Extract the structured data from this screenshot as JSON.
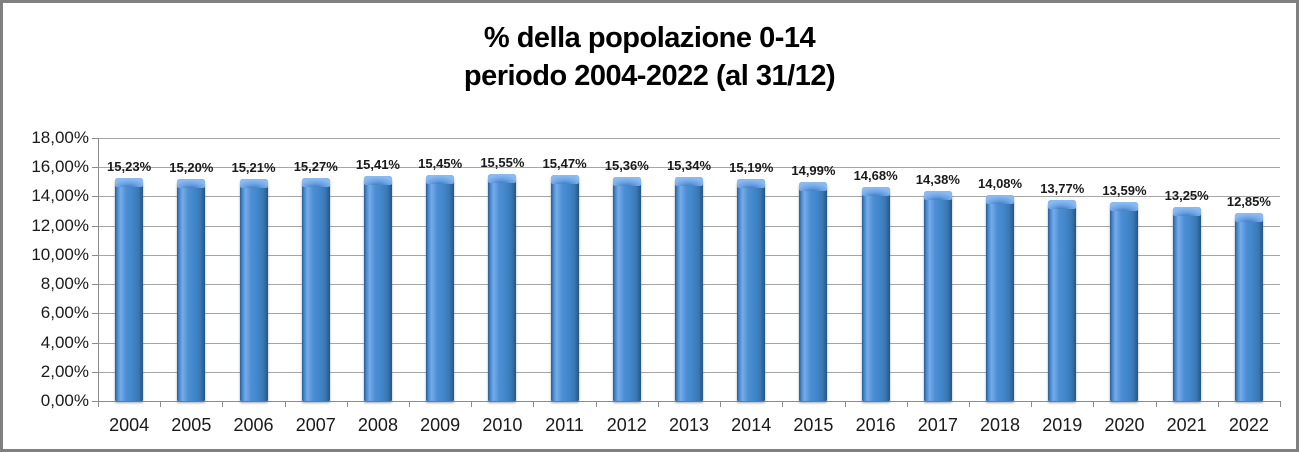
{
  "chart_data": {
    "type": "bar",
    "title": "% della popolazione 0-14",
    "subtitle": "periodo 2004-2022 (al 31/12)",
    "categories": [
      "2004",
      "2005",
      "2006",
      "2007",
      "2008",
      "2009",
      "2010",
      "2011",
      "2012",
      "2013",
      "2014",
      "2015",
      "2016",
      "2017",
      "2018",
      "2019",
      "2020",
      "2021",
      "2022"
    ],
    "values": [
      15.23,
      15.2,
      15.21,
      15.27,
      15.41,
      15.45,
      15.55,
      15.47,
      15.36,
      15.34,
      15.19,
      14.99,
      14.68,
      14.38,
      14.08,
      13.77,
      13.59,
      13.25,
      12.85
    ],
    "value_labels": [
      "15,23%",
      "15,20%",
      "15,21%",
      "15,27%",
      "15,41%",
      "15,45%",
      "15,55%",
      "15,47%",
      "15,36%",
      "15,34%",
      "15,19%",
      "14,99%",
      "14,68%",
      "14,38%",
      "14,08%",
      "13,77%",
      "13,59%",
      "13,25%",
      "12,85%"
    ],
    "y_ticks": [
      {
        "value": 18,
        "label": "18,00%"
      },
      {
        "value": 16,
        "label": "16,00%"
      },
      {
        "value": 14,
        "label": "14,00%"
      },
      {
        "value": 12,
        "label": "12,00%"
      },
      {
        "value": 10,
        "label": "10,00%"
      },
      {
        "value": 8,
        "label": "8,00%"
      },
      {
        "value": 6,
        "label": "6,00%"
      },
      {
        "value": 4,
        "label": "4,00%"
      },
      {
        "value": 2,
        "label": "2,00%"
      },
      {
        "value": 0,
        "label": "0,00%"
      }
    ],
    "ylim": [
      0,
      18
    ],
    "grid": true,
    "legend": "none",
    "xlabel": "",
    "ylabel": "",
    "colors": {
      "bar_fill": "#4287cb",
      "bar_edge": "#235685",
      "bar_highlight": "#77abe9",
      "gridline": "#a6a6a6",
      "axis": "#8c8c8c",
      "label_text": "#1a1a1a",
      "frame_border": "#808080",
      "background": "#ffffff"
    }
  }
}
